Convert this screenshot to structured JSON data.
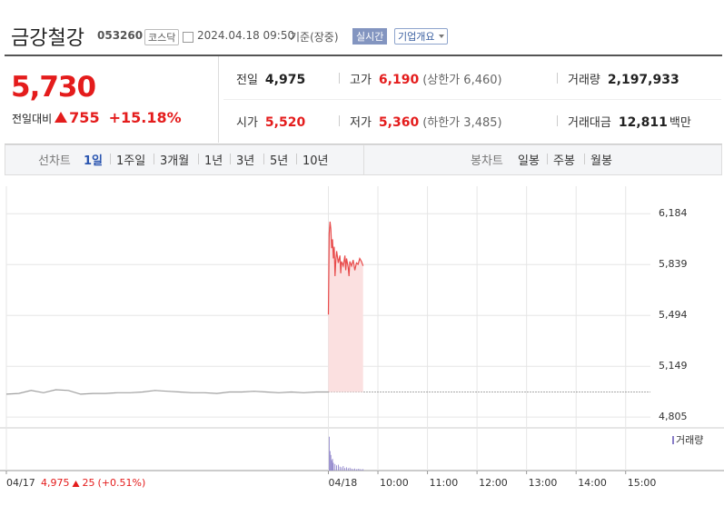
{
  "header": {
    "name": "금강철강",
    "code": "053260",
    "market": "코스닥",
    "datetime": "2024.04.18 09:50",
    "basis": "기준(장중)",
    "realtime": "실시간",
    "company_info": "기업개요"
  },
  "quote": {
    "price": "5,730",
    "change_label": "전일대비",
    "change": "755",
    "change_pct": "+15.18%"
  },
  "stats": {
    "prev_close": {
      "label": "전일",
      "value": "4,975"
    },
    "high": {
      "label": "고가",
      "value": "6,190",
      "sub": "(상한가 6,460)"
    },
    "volume": {
      "label": "거래량",
      "value": "2,197,933"
    },
    "open": {
      "label": "시가",
      "value": "5,520"
    },
    "low": {
      "label": "저가",
      "value": "5,360",
      "sub": "(하한가 3,485)"
    },
    "turnover": {
      "label": "거래대금",
      "value": "12,811",
      "unit": "백만"
    }
  },
  "tabs": {
    "line_label": "선차트",
    "periods": [
      "1일",
      "1주일",
      "3개월",
      "1년",
      "3년",
      "5년",
      "10년"
    ],
    "candle_label": "봉차트",
    "candle_periods": [
      "일봉",
      "주봉",
      "월봉"
    ]
  },
  "chart_data": {
    "type": "line",
    "xlim": [
      0,
      780
    ],
    "xticks": [
      {
        "value": 0,
        "label": "04/17"
      },
      {
        "value": 390,
        "label": "04/18"
      },
      {
        "value": 450,
        "label": "10:00"
      },
      {
        "value": 510,
        "label": "11:00"
      },
      {
        "value": 570,
        "label": "12:00"
      },
      {
        "value": 630,
        "label": "13:00"
      },
      {
        "value": 690,
        "label": "14:00"
      },
      {
        "value": 750,
        "label": "15:00"
      }
    ],
    "ylim": [
      4750,
      6370
    ],
    "yticks": [
      {
        "value": 4805,
        "label": "4,805"
      },
      {
        "value": 5149,
        "label": "5,149"
      },
      {
        "value": 5494,
        "label": "5,494"
      },
      {
        "value": 5839,
        "label": "5,839"
      },
      {
        "value": 6184,
        "label": "6,184"
      }
    ],
    "baseline": 4975,
    "series": [
      {
        "color": "#a0a0a0",
        "x": [
          0,
          15,
          30,
          45,
          60,
          75,
          90,
          105,
          120,
          135,
          150,
          165,
          180,
          195,
          210,
          225,
          240,
          255,
          270,
          285,
          300,
          315,
          330,
          345,
          360,
          375,
          390
        ],
        "values": [
          4960,
          4965,
          4985,
          4970,
          4990,
          4985,
          4960,
          4965,
          4965,
          4970,
          4970,
          4975,
          4985,
          4980,
          4975,
          4970,
          4970,
          4965,
          4975,
          4975,
          4980,
          4975,
          4970,
          4975,
          4970,
          4975,
          4975
        ]
      },
      {
        "color": "#e84c4c",
        "fill": "#fbe0e0",
        "x": [
          390,
          391,
          392,
          393,
          394,
          395,
          396,
          397,
          398,
          399,
          400,
          402,
          404,
          405,
          406,
          408,
          410,
          411,
          412,
          414,
          415,
          416,
          418,
          420,
          422,
          424,
          426,
          428,
          430,
          432
        ],
        "values": [
          5500,
          6050,
          6130,
          6080,
          5950,
          6010,
          5880,
          5960,
          5760,
          5870,
          5930,
          5850,
          5900,
          5780,
          5860,
          5830,
          5900,
          5800,
          5880,
          5820,
          5760,
          5860,
          5830,
          5870,
          5800,
          5850,
          5840,
          5880,
          5860,
          5830
        ]
      }
    ],
    "volume": {
      "name": "거래량",
      "color": "#8a7fc9",
      "ylim": [
        0,
        300000
      ],
      "x": [
        391,
        392,
        393,
        394,
        395,
        396,
        398,
        400,
        402,
        404,
        406,
        408,
        410,
        412,
        414,
        416,
        418,
        420,
        422,
        424,
        426,
        428,
        430,
        432
      ],
      "values": [
        260000,
        150000,
        120000,
        80000,
        90000,
        60000,
        50000,
        40000,
        45000,
        30000,
        25000,
        35000,
        20000,
        25000,
        18000,
        22000,
        15000,
        12000,
        16000,
        10000,
        14000,
        12000,
        9000,
        11000
      ]
    },
    "prev_day_summary": {
      "price": "4,975",
      "change": "25",
      "change_pct": "(+0.51%)"
    }
  }
}
